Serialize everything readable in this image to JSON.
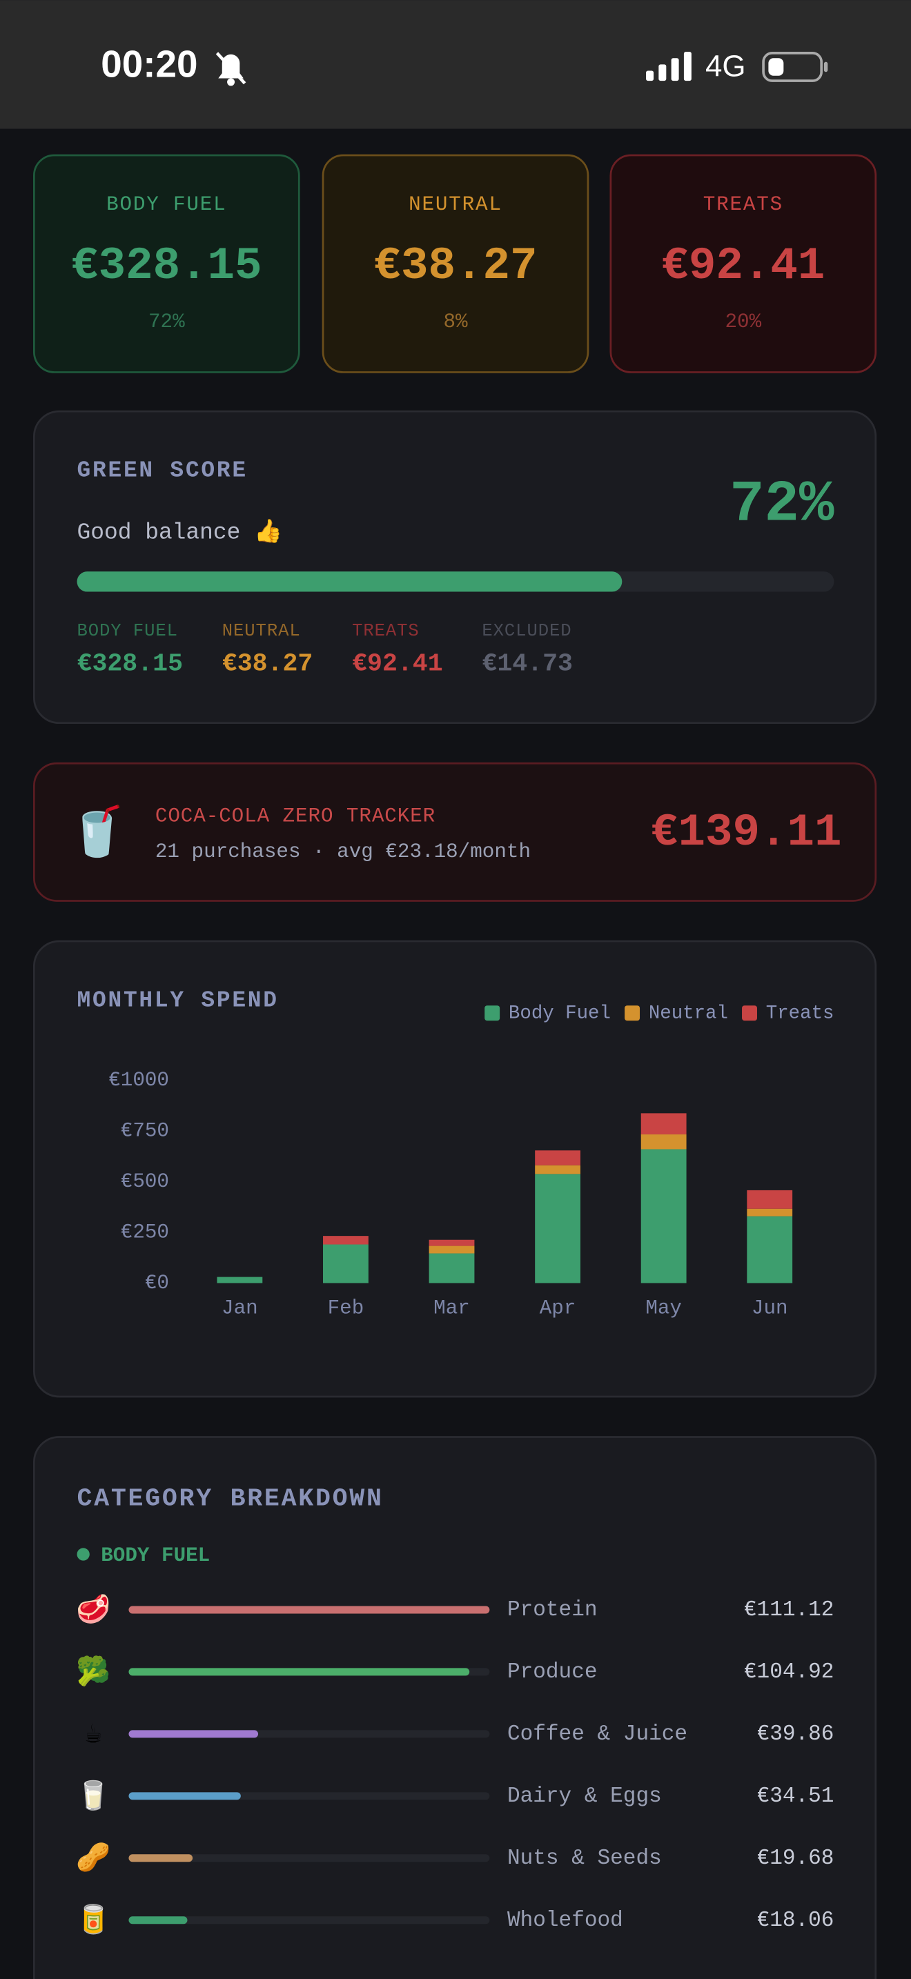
{
  "status_bar": {
    "time": "00:20",
    "network": "4G"
  },
  "summary_cards": [
    {
      "label": "BODY FUEL",
      "amount": "€328.15",
      "percent": "72%"
    },
    {
      "label": "NEUTRAL",
      "amount": "€38.27",
      "percent": "8%"
    },
    {
      "label": "TREATS",
      "amount": "€92.41",
      "percent": "20%"
    }
  ],
  "green_score": {
    "title": "GREEN SCORE",
    "subtitle": "Good balance 👍",
    "score": {
      "value": 72,
      "label": "72%"
    },
    "breakdown": [
      {
        "label": "BODY FUEL",
        "amount": "€328.15"
      },
      {
        "label": "NEUTRAL",
        "amount": "€38.27"
      },
      {
        "label": "TREATS",
        "amount": "€92.41"
      },
      {
        "label": "EXCLUDED",
        "amount": "€14.73"
      }
    ]
  },
  "tracker": {
    "icon": "🥤",
    "title": "COCA-COLA ZERO TRACKER",
    "subtitle": "21 purchases · avg €23.18/month",
    "amount": "€139.11"
  },
  "chart_data": {
    "type": "bar",
    "stacked": true,
    "title": "MONTHLY SPEND",
    "categories": [
      "Jan",
      "Feb",
      "Mar",
      "Apr",
      "May",
      "Jun"
    ],
    "series": [
      {
        "name": "Body Fuel",
        "color": "#3d9e6e",
        "values": [
          30,
          190,
          146,
          537,
          659,
          329
        ]
      },
      {
        "name": "Neutral",
        "color": "#d4922e",
        "values": [
          0,
          0,
          37,
          43,
          73,
          37
        ]
      },
      {
        "name": "Treats",
        "color": "#c94444",
        "values": [
          0,
          42,
          30,
          73,
          104,
          91
        ]
      }
    ],
    "ylim": [
      0,
      1000
    ],
    "yticks": [
      {
        "value": 0,
        "label": "€0"
      },
      {
        "value": 250,
        "label": "€250"
      },
      {
        "value": 500,
        "label": "€500"
      },
      {
        "value": 750,
        "label": "€750"
      },
      {
        "value": 1000,
        "label": "€1000"
      }
    ],
    "grid": false,
    "legend": "top-right"
  },
  "category_breakdown": {
    "title": "CATEGORY BREAKDOWN",
    "groups": [
      {
        "name": "BODY FUEL",
        "items": [
          {
            "icon": "🥩",
            "name": "Protein",
            "value": 111.12,
            "label": "€111.12",
            "color": "#c97070"
          },
          {
            "icon": "🥦",
            "name": "Produce",
            "value": 104.92,
            "label": "€104.92",
            "color": "#4caf6a"
          },
          {
            "icon": "☕",
            "name": "Coffee & Juice",
            "value": 39.86,
            "label": "€39.86",
            "color": "#a07ad0"
          },
          {
            "icon": "🥛",
            "name": "Dairy & Eggs",
            "value": 34.51,
            "label": "€34.51",
            "color": "#5b9ec9"
          },
          {
            "icon": "🥜",
            "name": "Nuts & Seeds",
            "value": 19.68,
            "label": "€19.68",
            "color": "#c09060"
          },
          {
            "icon": "🥫",
            "name": "Wholefood",
            "value": 18.06,
            "label": "€18.06",
            "color": "#3d9e6e"
          }
        ]
      }
    ]
  }
}
